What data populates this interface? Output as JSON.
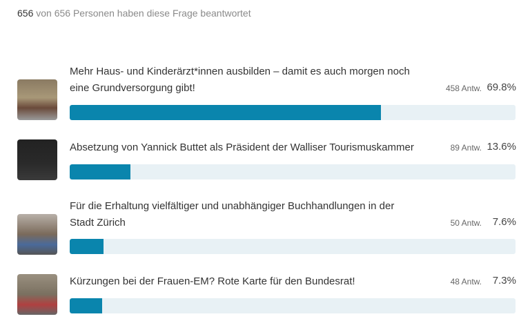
{
  "summary": {
    "answered": "656",
    "rest": " von 656 Personen haben diese Frage beantwortet"
  },
  "accent": "#0a85ad",
  "options": [
    {
      "label": "Mehr Haus- und Kinderärzt*innen ausbilden – damit es auch morgen noch eine Grundversorgung gibt!",
      "count": "458 Antw.",
      "percent": "69.8%",
      "value": 69.8
    },
    {
      "label": "Absetzung von Yannick Buttet als Präsident der Walliser Tourismuskammer",
      "count": "89 Antw.",
      "percent": "13.6%",
      "value": 13.6
    },
    {
      "label": "Für die Erhaltung vielfältiger und unabhängiger Buchhandlungen in der Stadt Zürich",
      "count": "50 Antw.",
      "percent": "7.6%",
      "value": 7.6
    },
    {
      "label": "Kürzungen bei der Frauen-EM? Rote Karte für den Bundesrat!",
      "count": "48 Antw.",
      "percent": "7.3%",
      "value": 7.3
    }
  ]
}
